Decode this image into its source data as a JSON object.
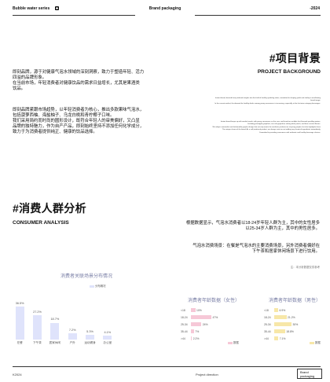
{
  "header": {
    "left_title": "Bubble water series",
    "center_title": "Brand packaging",
    "right_text": "-2024"
  },
  "background": {
    "title": "#项目背景",
    "subtitle": "PROJECT BACKGROUND",
    "para1": [
      "即刻品牌，源于对健康气泡水领域的深刻洞察，致力于塑造年轻、活力",
      "四溢的品牌形象。",
      "在当前市场，年轻消费者对健康饮品的需求日益增长，尤其是果酒类",
      "饮品。"
    ],
    "para2": [
      "即刻品牌紧跟市场趋势，以年轻消费者为核心，推出多款果味气泡水，",
      "包括菠萝西柚、海盐柚子、乌龙白桃和青柠椰子口味。",
      "我们采用简约而时尚的圆形设计，既符合年轻人的审美偏好，又凸显",
      "品牌的独特魅力，作为自产产品，即刻始终坚持不添加任何化学成分，",
      "致力于为消费者提供纯正、健康的饮品选择。"
    ],
    "en_para1": [
      "Instant brand, derived from profound insights into the field of healthy sparkling water, committed to shaping youth and vitality to overflowing",
      "brand image.",
      "In the current market, the demand for healthy drinks among young consumers is increasing, especially in the fruit wine category beverages."
    ],
    "en_para2": [
      "Instant brand keeps up with market trends, with young consumers as the core, and launches multiple fruit flavored sparkling waters,",
      "Including pineapple grapefruit, sea salt grapefruit, oolong white peach, and lime coconut flavors.",
      "We adopt a minimalist and fashionable graphic design that not only meets the aesthetic preferences of young people, but also highlights those",
      "The unique charm of the brand, As a self produced product, we always insist on not adding any chemical ingredients immediately,",
      "Committed to providing consumers with authentic and healthy beverage choices."
    ]
  },
  "consumer": {
    "title": "#消费人群分析",
    "subtitle": "CONSUMER ANALYSIS",
    "para1": [
      "根据数据显示，气泡水消费者以18-24岁年轻人群为主，其中的女性居多",
      "以25-34岁人群为主，其中的男性居多。"
    ],
    "para2": [
      "气泡水消费场景：在餐是气泡水的主要消费场景，另外消费者偏好在",
      "下午茶和居家休闲场景下进行饮用。"
    ],
    "source": "注：本分析数据仅供参考"
  },
  "chart_scene": {
    "type": "bar",
    "title": "消费者关联场景分布情况",
    "legend": "分布概况",
    "categories": [
      "在餐",
      "下午茶",
      "居家休闲",
      "户外",
      "运动健身",
      "办公室"
    ],
    "values": [
      36.5,
      27.2,
      18.7,
      7.2,
      5.3,
      4.1
    ],
    "labels": [
      "36.5%",
      "27.2%",
      "18.7%",
      "7.2%",
      "5.3%",
      "4.1%"
    ],
    "color": "#dfe3fb"
  },
  "chart_female": {
    "type": "bar",
    "title": "消费者年龄数据（女性）",
    "legend": "数据",
    "categories": [
      "<18",
      "18-24",
      "25-34",
      "35-44",
      ">44"
    ],
    "values": [
      10,
      47,
      24,
      7,
      2.2
    ],
    "labels": [
      "10%",
      "47%",
      "24%",
      "7%",
      "2.2%"
    ],
    "color": "#f6c8d7"
  },
  "chart_male": {
    "type": "bar",
    "title": "消费者年龄数据（男性）",
    "legend": "数据",
    "categories": [
      "<18",
      "18-24",
      "25-34",
      "35-44",
      ">44"
    ],
    "values": [
      6.9,
      21.2,
      30,
      18.8,
      7.1
    ],
    "labels": [
      "6.9%",
      "21.2%",
      "30%",
      "18.8%",
      "7.1%"
    ],
    "color": "#f7e7a8"
  },
  "footer": {
    "left": "K2024",
    "center": "Project direction",
    "right_1": "Brand",
    "right_2": "packaging"
  }
}
